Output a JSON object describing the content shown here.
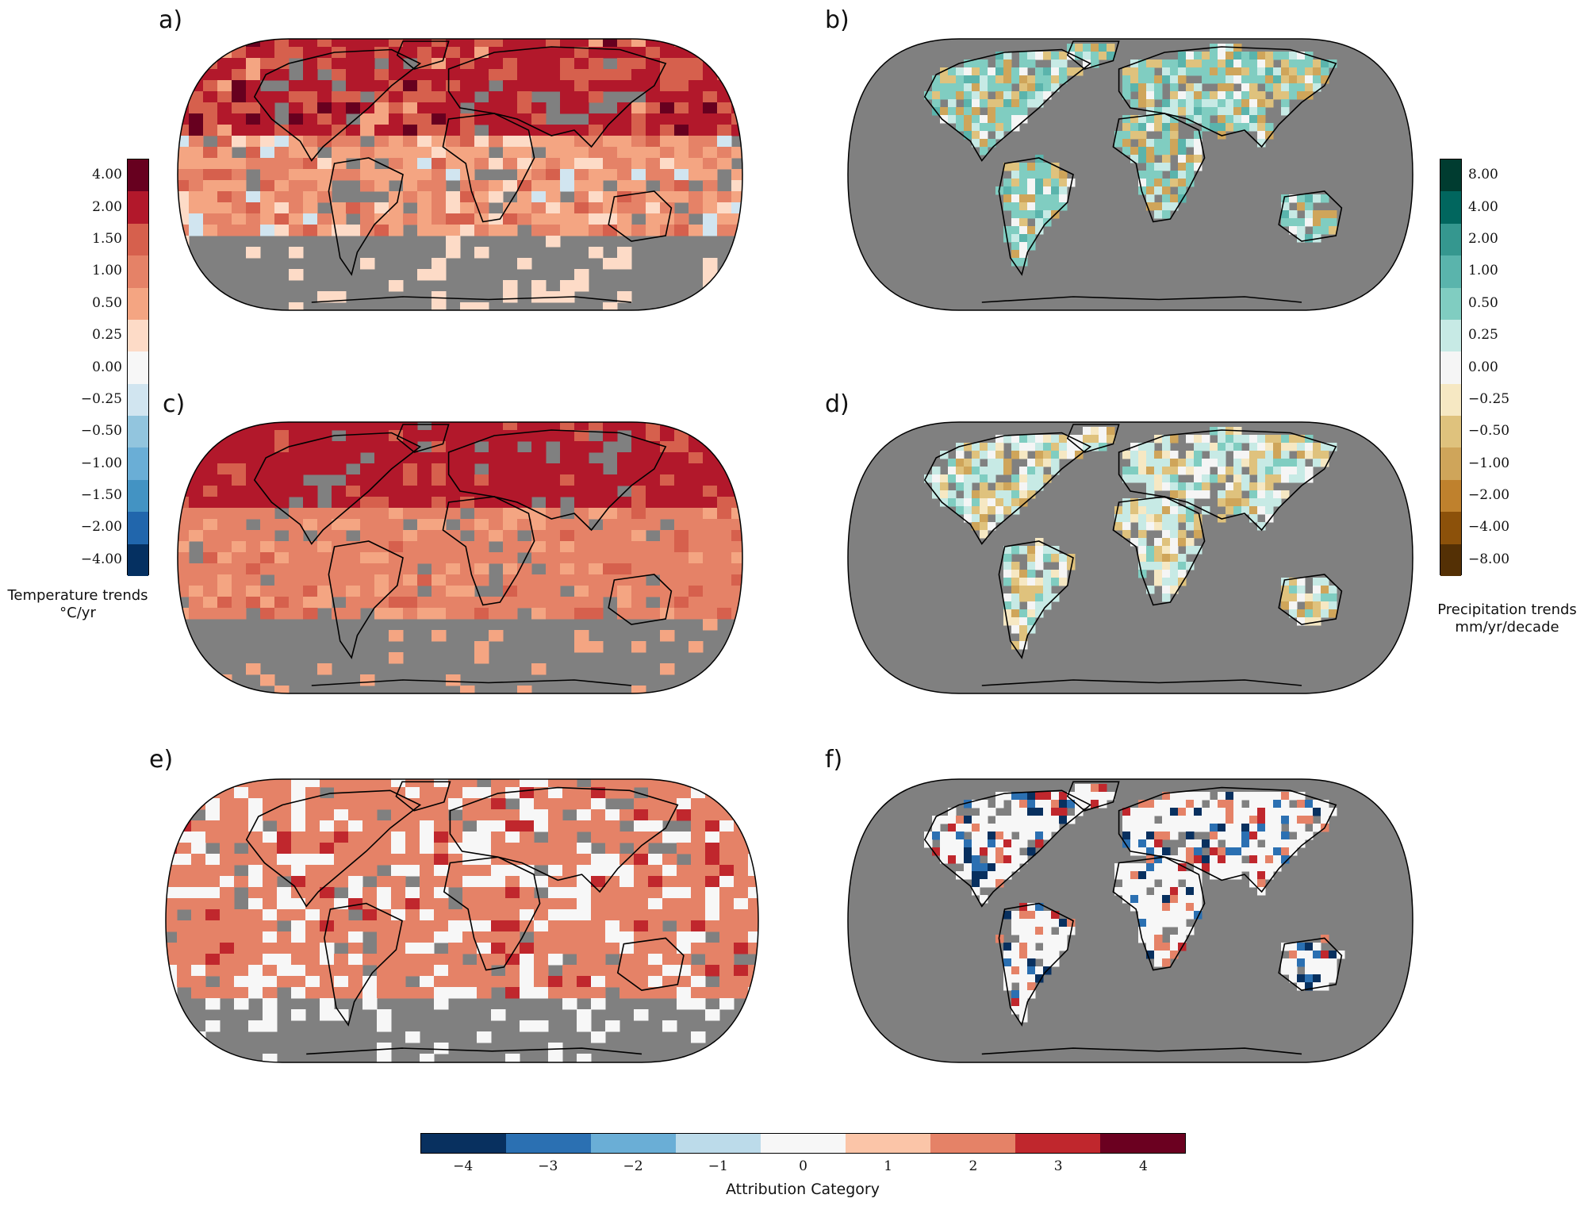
{
  "panels": [
    {
      "key": "a",
      "label": "a)"
    },
    {
      "key": "b",
      "label": "b)"
    },
    {
      "key": "c",
      "label": "c)"
    },
    {
      "key": "d",
      "label": "d)"
    },
    {
      "key": "e",
      "label": "e)"
    },
    {
      "key": "f",
      "label": "f)"
    }
  ],
  "temperature_colorbar": {
    "title": "Temperature trends",
    "units": "°C/yr",
    "ticks": [
      "4.00",
      "2.00",
      "1.50",
      "1.00",
      "0.50",
      "0.25",
      "0.00",
      "−0.25",
      "−0.50",
      "−1.00",
      "−1.50",
      "−2.00",
      "−4.00"
    ],
    "colors": [
      "#67001f",
      "#b2182b",
      "#d6604d",
      "#e58267",
      "#f4a582",
      "#fddbc7",
      "#f7f7f7",
      "#d1e5f0",
      "#92c5de",
      "#6aaed6",
      "#4393c3",
      "#2166ac",
      "#053061"
    ]
  },
  "precip_colorbar": {
    "title": "Precipitation trends",
    "units": "mm/yr/decade",
    "ticks": [
      "8.00",
      "4.00",
      "2.00",
      "1.00",
      "0.50",
      "0.25",
      "0.00",
      "−0.25",
      "−0.50",
      "−1.00",
      "−2.00",
      "−4.00",
      "−8.00"
    ],
    "colors": [
      "#003c30",
      "#01665e",
      "#35978f",
      "#5ab4ac",
      "#80cdc1",
      "#c7eae5",
      "#f5f5f5",
      "#f6e8c3",
      "#dfc27d",
      "#cfa55a",
      "#bf812d",
      "#8c510a",
      "#543005"
    ]
  },
  "attribution_colorbar": {
    "title": "Attribution Category",
    "ticks": [
      "−4",
      "−3",
      "−2",
      "−1",
      "0",
      "1",
      "2",
      "3",
      "4"
    ],
    "colors": [
      "#08305f",
      "#2b70b2",
      "#6aaed6",
      "#bcdbea",
      "#f7f7f7",
      "#fbc5a8",
      "#e58267",
      "#c0272d",
      "#6b0020"
    ]
  },
  "map_colors": {
    "missing": "#808080",
    "coastline": "#000000"
  }
}
